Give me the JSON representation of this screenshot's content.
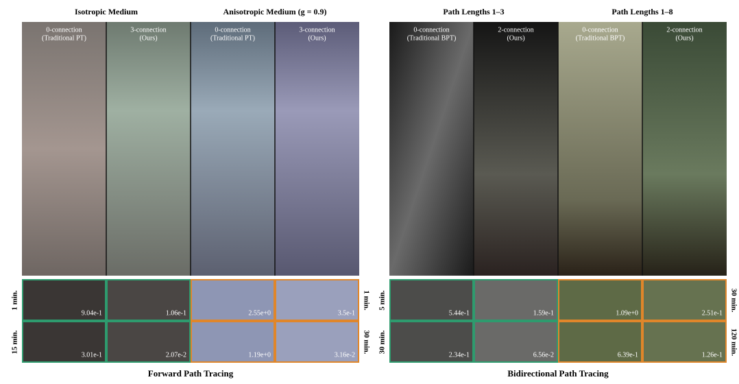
{
  "panels": [
    {
      "headers": [
        "Isotropic Medium",
        "Anisotropic Medium (g = 0.9)"
      ],
      "columns": [
        [
          "0-connection",
          "(Traditional PT)"
        ],
        [
          "3-connection",
          "(Ours)"
        ],
        [
          "0-connection",
          "(Traditional PT)"
        ],
        [
          "3-connection",
          "(Ours)"
        ]
      ],
      "left_times": [
        "1 min.",
        "15 min."
      ],
      "right_times": [
        "1 min.",
        "30 min."
      ],
      "errors": [
        [
          "9.04e-1",
          "1.06e-1",
          "2.55e+0",
          "3.5e-1"
        ],
        [
          "3.01e-1",
          "2.07e-2",
          "1.19e+0",
          "3.16e-2"
        ]
      ],
      "caption": "Forward Path Tracing"
    },
    {
      "headers": [
        "Path Lengths 1–3",
        "Path Lengths 1–8"
      ],
      "columns": [
        [
          "0-connection",
          "(Traditional BPT)"
        ],
        [
          "2-connection",
          "(Ours)"
        ],
        [
          "0-connection",
          "(Traditional BPT)"
        ],
        [
          "2-connection",
          "(Ours)"
        ]
      ],
      "left_times": [
        "5 min.",
        "30 min."
      ],
      "right_times": [
        "30 min.",
        "120 min."
      ],
      "errors": [
        [
          "5.44e-1",
          "1.59e-1",
          "1.09e+0",
          "2.51e-1"
        ],
        [
          "2.34e-1",
          "6.56e-2",
          "6.39e-1",
          "1.26e-1"
        ]
      ],
      "caption": "Bidirectional Path Tracing"
    }
  ]
}
